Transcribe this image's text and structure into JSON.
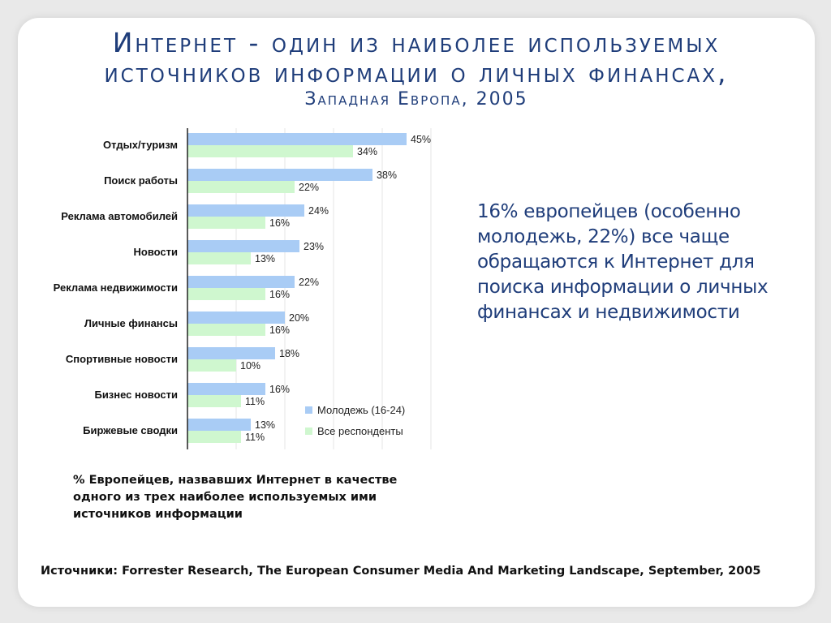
{
  "title": {
    "line1": "Интернет - один из наиболее используемых",
    "line2": "источников информации о личных финансах,",
    "line3": "Западная Европа, 2005"
  },
  "callout": "16% европейцев (особенно молодежь, 22%) все чаще обращаются к Интернет для поиска информации о личных финансах и недвижимости",
  "note": "% Европейцев, назвавших Интернет в качестве одного из трех наиболее используемых ими источников информации",
  "source": "Источники: Forrester Research, The European Consumer Media And Marketing Landscape, September, 2005",
  "colors": {
    "title": "#1f3d7a",
    "series_youth": "#a9ccf5",
    "series_all": "#cff7cf"
  },
  "chart_data": {
    "type": "bar",
    "orientation": "horizontal",
    "categories": [
      "Отдых/туризм",
      "Поиск работы",
      "Реклама автомобилей",
      "Новости",
      "Реклама недвижимости",
      "Личные финансы",
      "Спортивные новости",
      "Бизнес новости",
      "Биржевые сводки"
    ],
    "series": [
      {
        "name": "Молодежь (16-24)",
        "values": [
          45,
          38,
          24,
          23,
          22,
          20,
          18,
          16,
          13
        ]
      },
      {
        "name": "Все респонденты",
        "values": [
          34,
          22,
          16,
          13,
          16,
          16,
          10,
          11,
          11
        ]
      }
    ],
    "value_labels_suffix": "%",
    "xlim": [
      0,
      50
    ],
    "grid": true,
    "legend_position": "bottom-right"
  }
}
